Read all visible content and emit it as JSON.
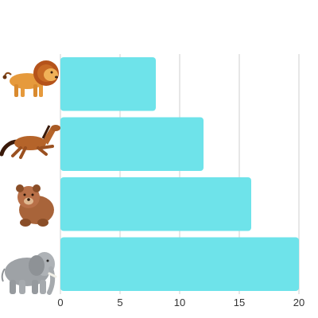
{
  "chart_data": {
    "type": "bar",
    "orientation": "horizontal",
    "categories": [
      "lion",
      "horse",
      "bear",
      "elephant"
    ],
    "values": [
      8,
      12,
      16,
      20
    ],
    "category_labels": "pictures",
    "xlim": [
      0,
      20
    ],
    "xticks": [
      "0",
      "5",
      "10",
      "15",
      "20"
    ],
    "grid": "vertical",
    "legend": "none",
    "title": "",
    "xlabel": "",
    "ylabel": "",
    "bar_color": "#6ee3ea"
  }
}
